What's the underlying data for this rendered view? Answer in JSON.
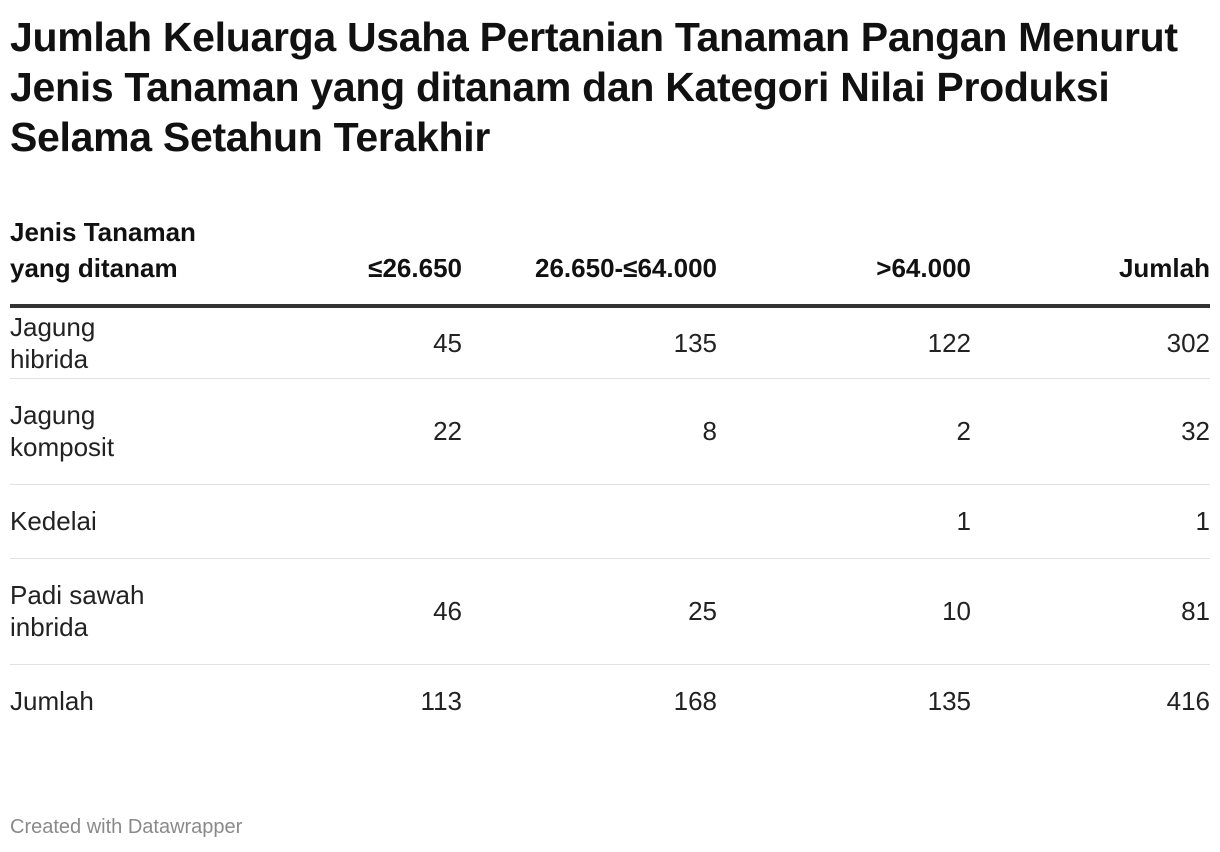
{
  "chart_data": {
    "type": "table",
    "title": "Jumlah Keluarga Usaha Pertanian Tanaman Pangan Menurut Jenis Tanaman yang ditanam dan Kategori Nilai Produksi Selama Setahun Terakhir",
    "columns": [
      "Jenis Tanaman yang ditanam",
      "≤26.650",
      "26.650-≤64.000",
      ">64.000",
      "Jumlah"
    ],
    "rows": [
      {
        "label": "Jagung hibrida",
        "values": [
          "45",
          "135",
          "122",
          "302"
        ]
      },
      {
        "label": "Jagung komposit",
        "values": [
          "22",
          "8",
          "2",
          "32"
        ]
      },
      {
        "label": "Kedelai",
        "values": [
          "",
          "",
          "1",
          "1"
        ]
      },
      {
        "label": "Padi sawah inbrida",
        "values": [
          "46",
          "25",
          "10",
          "81"
        ]
      },
      {
        "label": "Jumlah",
        "values": [
          "113",
          "168",
          "135",
          "416"
        ]
      }
    ]
  },
  "footer": "Created with Datawrapper"
}
